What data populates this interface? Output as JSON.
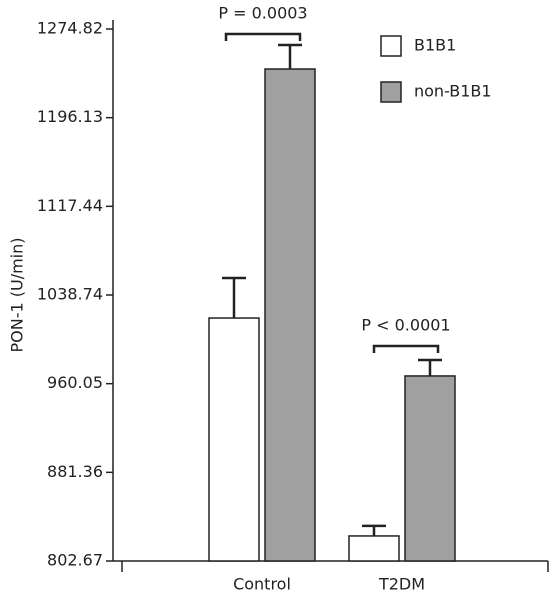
{
  "chart_data": {
    "type": "bar",
    "y_label": "PON-1 (U/min)",
    "categories": [
      "Control",
      "T2DM"
    ],
    "series": [
      {
        "name": "B1B1",
        "color": "#ffffff",
        "values": [
          1018.3,
          824.9
        ],
        "errors": [
          35.5,
          8.9
        ]
      },
      {
        "name": "non-B1B1",
        "color": "#a0a0a0",
        "values": [
          1239.3,
          966.9
        ],
        "errors": [
          21.3,
          14.2
        ]
      }
    ],
    "annotations": [
      "P = 0.0003",
      "P < 0.0001"
    ],
    "ylim": [
      802.67,
      1274.82
    ],
    "yticks": [
      802.67,
      881.36,
      960.05,
      1038.74,
      1117.44,
      1196.13,
      1274.82
    ],
    "legend": "upper right"
  }
}
